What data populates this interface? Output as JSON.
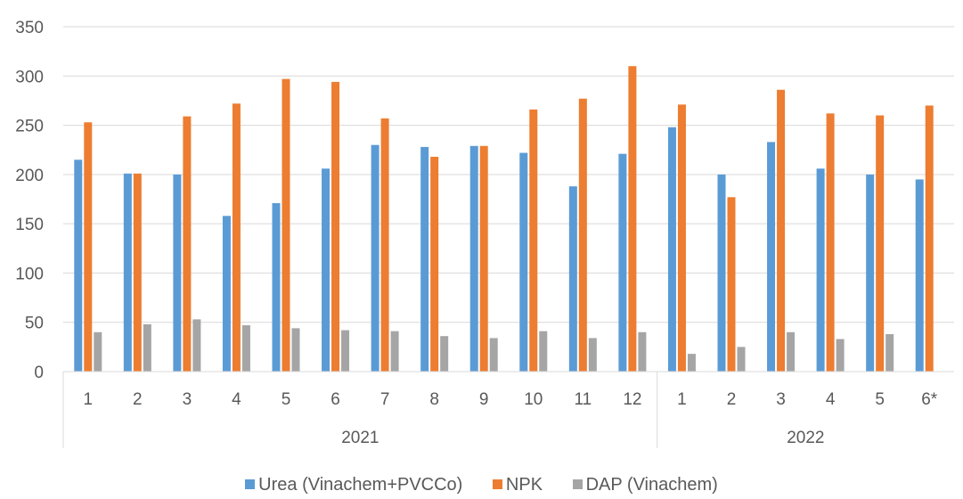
{
  "chart_data": {
    "type": "bar",
    "groups": [
      {
        "label": "2021",
        "categories": [
          "1",
          "2",
          "3",
          "4",
          "5",
          "6",
          "7",
          "8",
          "9",
          "10",
          "11",
          "12"
        ]
      },
      {
        "label": "2022",
        "categories": [
          "1",
          "2",
          "3",
          "4",
          "5",
          "6*"
        ]
      }
    ],
    "series": [
      {
        "name": "Urea (Vinachem+PVCCo)",
        "color": "#5B9BD5",
        "values": [
          215,
          201,
          200,
          158,
          171,
          206,
          230,
          228,
          229,
          222,
          188,
          221,
          248,
          200,
          233,
          206,
          200,
          195
        ]
      },
      {
        "name": "NPK",
        "color": "#ED7D31",
        "values": [
          253,
          201,
          259,
          272,
          297,
          294,
          257,
          218,
          229,
          266,
          277,
          310,
          271,
          177,
          286,
          262,
          260,
          270
        ]
      },
      {
        "name": "DAP (Vinachem)",
        "color": "#A5A5A5",
        "values": [
          40,
          48,
          53,
          47,
          44,
          42,
          41,
          36,
          34,
          41,
          34,
          40,
          18,
          25,
          40,
          33,
          38,
          0
        ]
      }
    ],
    "ylim": [
      0,
      350
    ],
    "yticks": [
      "0",
      "50",
      "100",
      "150",
      "200",
      "250",
      "300",
      "350"
    ],
    "grid": true,
    "legend_position": "bottom"
  }
}
